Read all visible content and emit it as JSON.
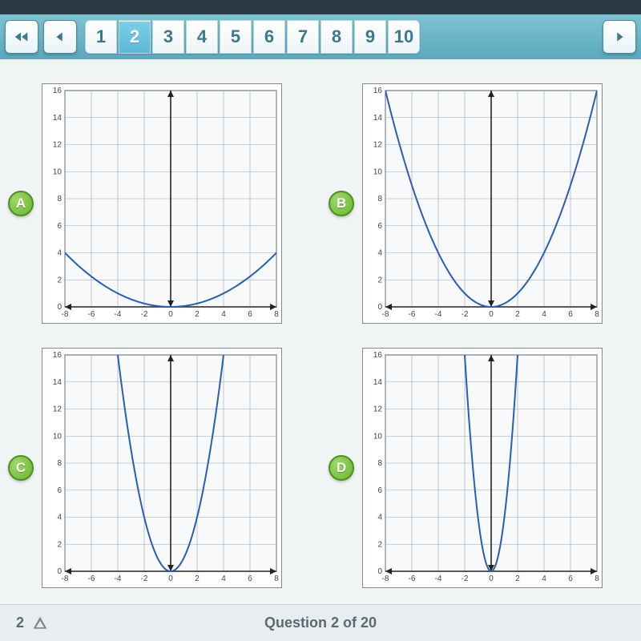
{
  "nav": {
    "pages": [
      "1",
      "2",
      "3",
      "4",
      "5",
      "6",
      "7",
      "8",
      "9",
      "10"
    ],
    "active": 1
  },
  "charts": [
    {
      "label": "A",
      "type": "parabola",
      "xlim": [
        -8,
        8
      ],
      "ylim": [
        0,
        16
      ],
      "xtick_step": 2,
      "ytick_step": 2,
      "xtick_labels": [
        "-8",
        "-6",
        "-4",
        "-2",
        "0",
        "2",
        "4",
        "6",
        "8"
      ],
      "ytick_labels": [
        "0",
        "2",
        "4",
        "6",
        "8",
        "10",
        "12",
        "14",
        "16"
      ],
      "curve_a": 0.0625,
      "curve_vertex": [
        0,
        0
      ],
      "curve_color": "#2a5db8",
      "grid_color": "#9aa4aa",
      "axis_color": "#222",
      "background_color": "#f8f9fa",
      "label_fontsize": 10,
      "curve_width": 2
    },
    {
      "label": "B",
      "type": "parabola",
      "xlim": [
        -8,
        8
      ],
      "ylim": [
        0,
        16
      ],
      "xtick_step": 2,
      "ytick_step": 2,
      "xtick_labels": [
        "-8",
        "-6",
        "-4",
        "-2",
        "0",
        "2",
        "4",
        "6",
        "8"
      ],
      "ytick_labels": [
        "0",
        "2",
        "4",
        "6",
        "8",
        "10",
        "12",
        "14",
        "16"
      ],
      "curve_a": 0.25,
      "curve_vertex": [
        0,
        0
      ],
      "curve_color": "#2a5db8",
      "grid_color": "#9aa4aa",
      "axis_color": "#222",
      "background_color": "#f8f9fa",
      "label_fontsize": 10,
      "curve_width": 2
    },
    {
      "label": "C",
      "type": "parabola",
      "xlim": [
        -8,
        8
      ],
      "ylim": [
        0,
        16
      ],
      "xtick_step": 2,
      "ytick_step": 2,
      "xtick_labels": [
        "-8",
        "-6",
        "-4",
        "-2",
        "0",
        "2",
        "4",
        "6",
        "8"
      ],
      "ytick_labels": [
        "0",
        "2",
        "4",
        "6",
        "8",
        "10",
        "12",
        "14",
        "16"
      ],
      "curve_a": 1.0,
      "curve_vertex": [
        0,
        0
      ],
      "curve_color": "#2a5db8",
      "grid_color": "#9aa4aa",
      "axis_color": "#222",
      "background_color": "#f8f9fa",
      "label_fontsize": 10,
      "curve_width": 2
    },
    {
      "label": "D",
      "type": "parabola",
      "xlim": [
        -8,
        8
      ],
      "ylim": [
        0,
        16
      ],
      "xtick_step": 2,
      "ytick_step": 2,
      "xtick_labels": [
        "-8",
        "-6",
        "-4",
        "-2",
        "0",
        "2",
        "4",
        "6",
        "8"
      ],
      "ytick_labels": [
        "0",
        "2",
        "4",
        "6",
        "8",
        "10",
        "12",
        "14",
        "16"
      ],
      "curve_a": 4.0,
      "curve_vertex": [
        0,
        0
      ],
      "curve_color": "#2a5db8",
      "grid_color": "#9aa4aa",
      "axis_color": "#222",
      "background_color": "#f8f9fa",
      "label_fontsize": 10,
      "curve_width": 2
    }
  ],
  "footer": {
    "question_text": "Question 2 of 20",
    "page_indicator": "2"
  }
}
